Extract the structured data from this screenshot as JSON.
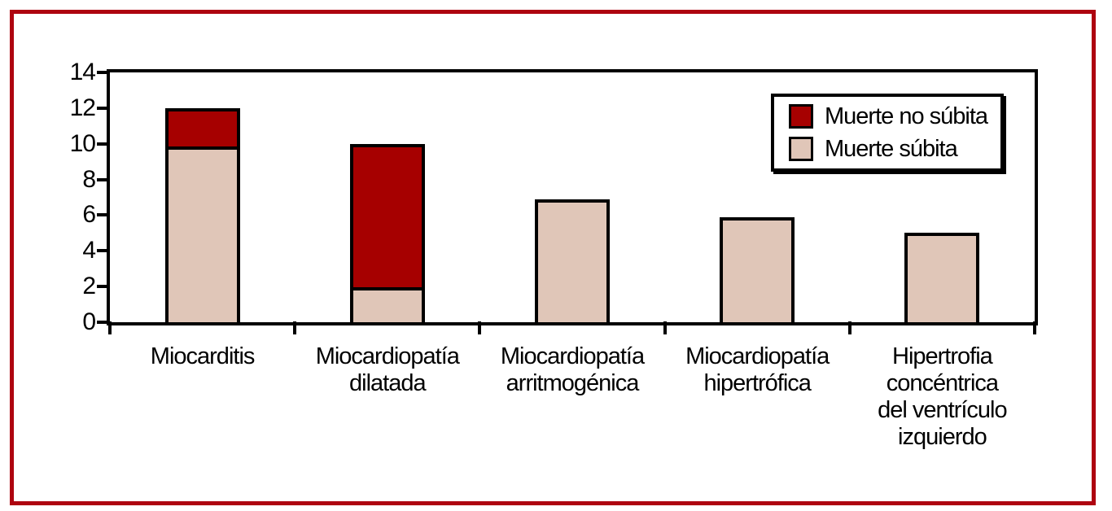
{
  "figure": {
    "outer_frame_color": "#ae0410",
    "plot_frame_color": "#000000",
    "background_color": "#ffffff"
  },
  "chart_data": {
    "type": "bar",
    "stacked": true,
    "title": "",
    "xlabel": "",
    "ylabel": "",
    "ylim": [
      0,
      14
    ],
    "yticks": [
      0,
      2,
      4,
      6,
      8,
      10,
      12,
      14
    ],
    "grid": false,
    "bar_outline_color": "#000000",
    "categories": [
      "Miocarditis",
      "Miocardiopatía\ndilatada",
      "Miocardiopatía\narritmogénica",
      "Miocardiopatía\nhipertrófica",
      "Hipertrofia\nconcéntrica\ndel ventrículo\nizquierdo"
    ],
    "series": [
      {
        "name": "Muerte súbita",
        "color": "#e0c6b8",
        "values": [
          9.8,
          1.8,
          6.9,
          5.9,
          5.0
        ]
      },
      {
        "name": "Muerte no súbita",
        "color": "#a60000",
        "values": [
          2.2,
          8.2,
          0,
          0,
          0
        ]
      }
    ],
    "totals": [
      12,
      10,
      6.9,
      5.9,
      5.0
    ],
    "legend_position": "upper right",
    "legend_entries": [
      {
        "label": "Muerte no súbita",
        "color": "#a60000"
      },
      {
        "label": "Muerte súbita",
        "color": "#e0c6b8"
      }
    ]
  }
}
